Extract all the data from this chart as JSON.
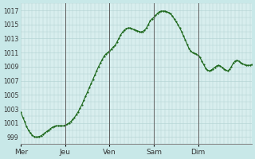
{
  "background_color": "#c8e8e8",
  "plot_bg_color": "#d8eeee",
  "line_color": "#1a6618",
  "marker_color": "#1a6618",
  "grid_color": "#b0d0d0",
  "vline_color": "#606060",
  "ylim": [
    998,
    1018
  ],
  "yticks": [
    999,
    1001,
    1003,
    1005,
    1007,
    1009,
    1011,
    1013,
    1015,
    1017
  ],
  "ytick_labels": [
    "999",
    "1001",
    "1003",
    "1005",
    "1007",
    "1009",
    "1011",
    "1013",
    "1015",
    "1017"
  ],
  "xtick_labels": [
    "Mer",
    "Jeu",
    "Ven",
    "Sam",
    "Dim"
  ],
  "xtick_positions": [
    0,
    24,
    48,
    72,
    96
  ],
  "vline_positions": [
    24,
    48,
    72,
    96
  ],
  "pressure_data": [
    1002.5,
    1001.8,
    1001.2,
    1000.5,
    1000.0,
    999.6,
    999.3,
    999.1,
    999.0,
    999.0,
    999.1,
    999.2,
    999.4,
    999.6,
    999.8,
    1000.0,
    1000.2,
    1000.4,
    1000.5,
    1000.6,
    1000.6,
    1000.6,
    1000.6,
    1000.6,
    1000.7,
    1000.8,
    1001.0,
    1001.2,
    1001.5,
    1001.8,
    1002.2,
    1002.6,
    1003.1,
    1003.6,
    1004.2,
    1004.8,
    1005.4,
    1006.0,
    1006.6,
    1007.2,
    1007.8,
    1008.4,
    1009.0,
    1009.5,
    1010.0,
    1010.5,
    1010.8,
    1011.0,
    1011.2,
    1011.5,
    1011.8,
    1012.0,
    1012.5,
    1013.0,
    1013.5,
    1013.9,
    1014.2,
    1014.4,
    1014.5,
    1014.5,
    1014.4,
    1014.3,
    1014.2,
    1014.1,
    1014.0,
    1013.9,
    1014.0,
    1014.2,
    1014.5,
    1015.0,
    1015.5,
    1015.8,
    1016.0,
    1016.3,
    1016.6,
    1016.8,
    1016.9,
    1016.9,
    1016.9,
    1016.8,
    1016.7,
    1016.5,
    1016.2,
    1015.8,
    1015.4,
    1015.0,
    1014.5,
    1014.0,
    1013.4,
    1012.8,
    1012.2,
    1011.6,
    1011.2,
    1011.0,
    1010.9,
    1010.8,
    1010.6,
    1010.3,
    1009.8,
    1009.3,
    1008.8,
    1008.5,
    1008.4,
    1008.5,
    1008.7,
    1008.9,
    1009.1,
    1009.2,
    1009.1,
    1008.9,
    1008.7,
    1008.5,
    1008.4,
    1008.6,
    1009.0,
    1009.5,
    1009.8,
    1009.9,
    1009.8,
    1009.6,
    1009.4,
    1009.3,
    1009.2,
    1009.2,
    1009.2,
    1009.3
  ]
}
